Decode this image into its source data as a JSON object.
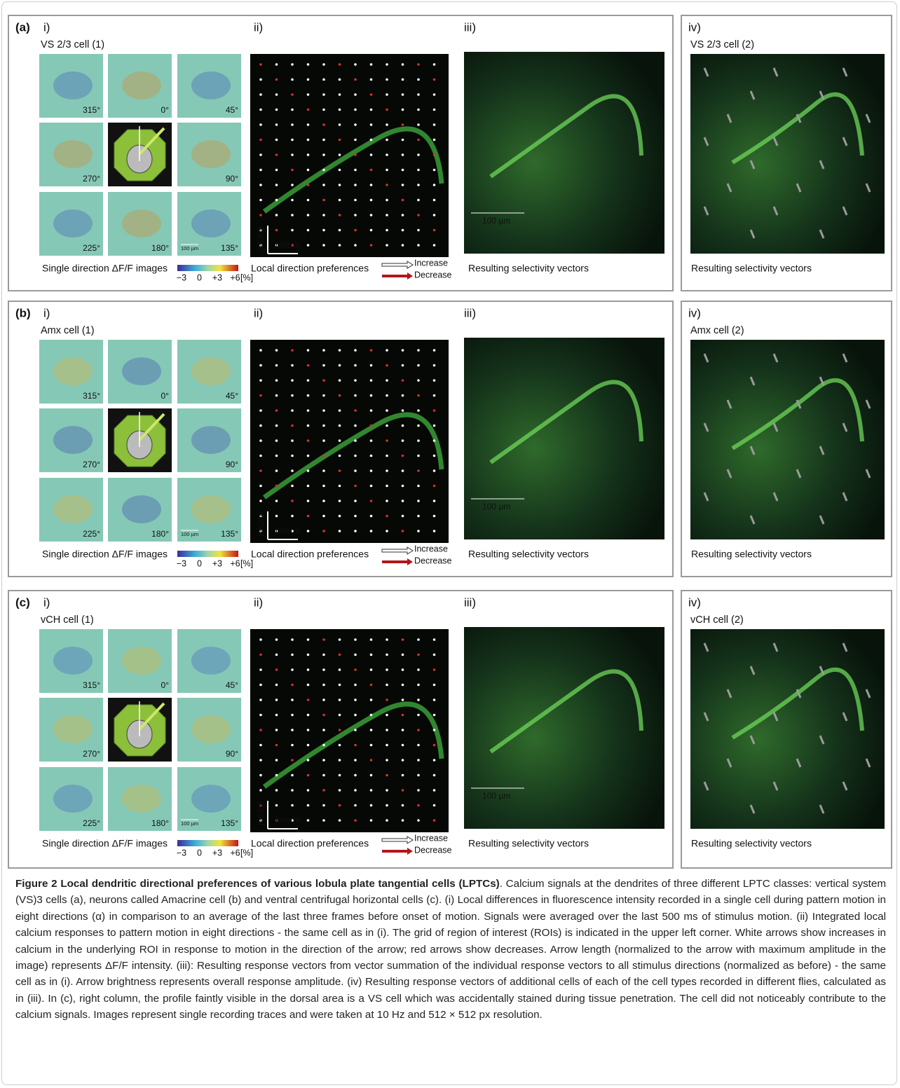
{
  "panels": {
    "i": "i)",
    "ii": "ii)",
    "iii": "iii)",
    "iv": "iv)"
  },
  "angles": [
    "315°",
    "0°",
    "45°",
    "270°",
    "90°",
    "225°",
    "180°",
    "135°"
  ],
  "scale_bar": "100 µm",
  "panel_i_caption": "Single direction ΔF/F images",
  "colorbar_ticks": [
    "−3",
    "0",
    "+3",
    "+6"
  ],
  "colorbar_unit": "[%]",
  "axis_dorsal": "dorsal",
  "axis_lateral": "lateral",
  "panel_ii_caption": "Local direction preferences",
  "legend": {
    "increase": "Increase",
    "decrease": "Decrease"
  },
  "panel_iii_caption": "Resulting selectivity vectors",
  "rows": [
    {
      "label": "(a)",
      "cell_1": "VS 2/3 cell (1)",
      "cell_2": "VS 2/3 cell (2)"
    },
    {
      "label": "(b)",
      "cell_1": "Amx cell (1)",
      "cell_2": "Amx cell (2)"
    },
    {
      "label": "(c)",
      "cell_1": "vCH cell (1)",
      "cell_2": "vCH cell (2)"
    }
  ],
  "caption": {
    "title": "Figure 2 Local dendritic directional preferences of various lobula plate tangential cells (LPTCs)",
    "text": ". Calcium signals at the dendrites of three different LPTC classes: vertical system (VS)3 cells (a), neurons called Amacrine cell (b) and ventral centrifugal horizontal cells (c). (i) Local differences in fluorescence intensity recorded in a single cell during pattern motion in eight directions (α) in comparison to an average of the last three frames before onset of motion. Signals were averaged over the last 500 ms of stimulus motion. (ii) Integrated local calcium responses to pattern motion in eight directions - the same cell as in (i). The grid of region of interest (ROIs) is indicated in the upper left corner. White arrows show increases in calcium in the underlying ROI in response to motion in the direction of the arrow; red arrows show decreases. Arrow length (normalized to the arrow with maximum amplitude in the image) represents ΔF/F intensity. (iii): Resulting response vectors from vector summation of the individual response vectors to all stimulus directions (normalized as before) - the same cell as in (i). Arrow brightness represents overall response amplitude. (iv) Resulting response vectors of additional cells of each of the cell types recorded in different flies, calculated as in (iii). In (c), right column, the profile faintly visible in the dorsal area is a VS cell which was accidentally stained during tissue penetration. The cell did not noticeably contribute to the calcium signals. Images represent single recording traces and were taken at 10 Hz and 512 × 512 px resolution."
  }
}
